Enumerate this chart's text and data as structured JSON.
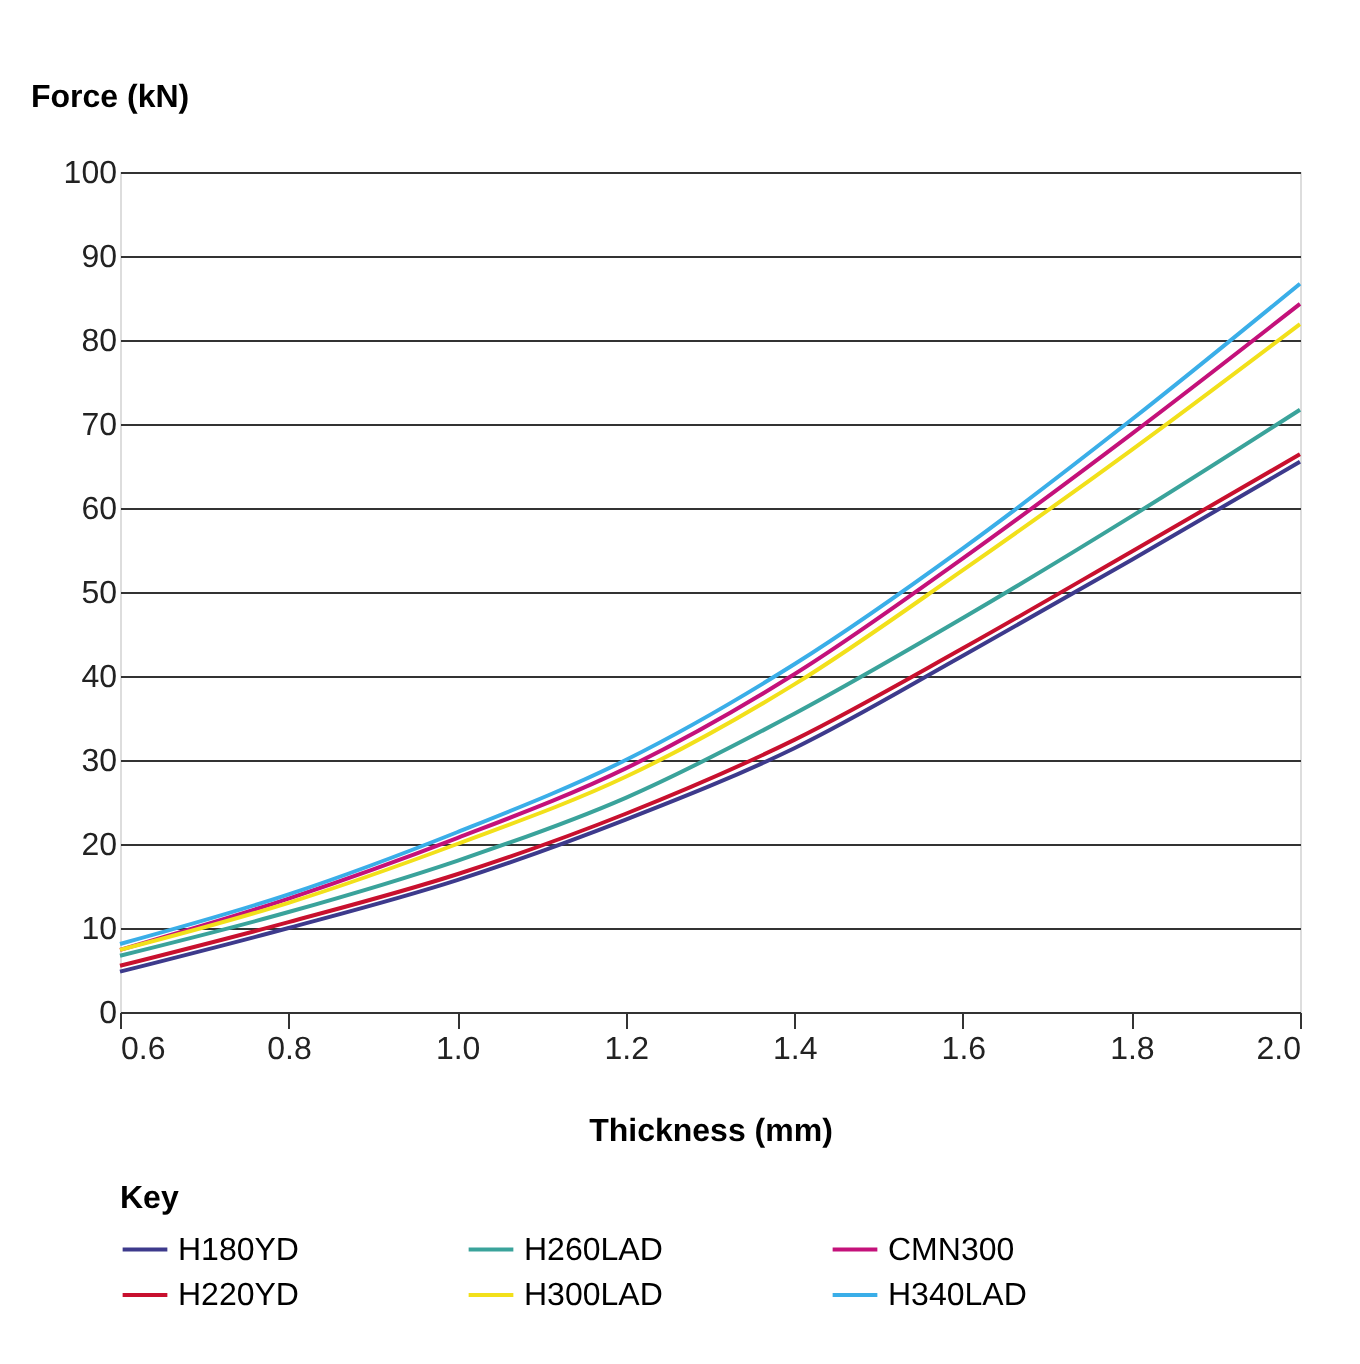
{
  "chart_data": {
    "type": "line",
    "xlabel": "Thickness (mm)",
    "ylabel": "Force (kN)",
    "legend_title": "Key",
    "x": [
      0.6,
      0.8,
      1.0,
      1.2,
      1.4,
      1.6,
      1.8,
      2.0
    ],
    "series": [
      {
        "name": "H180YD",
        "color": "#3d3a8c",
        "values": [
          4.8,
          10,
          15.7,
          22.9,
          31.4,
          42.4,
          53.8,
          65.5
        ]
      },
      {
        "name": "H260LAD",
        "color": "#3aa39b",
        "values": [
          6.7,
          11.9,
          18,
          25.5,
          35.5,
          46.9,
          59,
          71.7
        ]
      },
      {
        "name": "CMN300",
        "color": "#c4117a",
        "values": [
          7.4,
          13.5,
          20.7,
          29,
          40.2,
          54,
          68.8,
          84.3
        ]
      },
      {
        "name": "H220YD",
        "color": "#c8102e",
        "values": [
          5.5,
          10.7,
          16.4,
          23.6,
          32.4,
          43.3,
          54.8,
          66.4
        ]
      },
      {
        "name": "H300LAD",
        "color": "#f2e01a",
        "values": [
          7.4,
          13,
          20,
          28,
          39,
          52.6,
          66.9,
          81.9
        ]
      },
      {
        "name": "H340LAD",
        "color": "#3aaee8",
        "values": [
          8.1,
          14,
          21.4,
          30,
          41.4,
          55.2,
          70.5,
          86.7
        ]
      }
    ],
    "xlim": [
      0.6,
      2.0
    ],
    "xticks": [
      0.6,
      0.8,
      {
        "value": 1,
        "label": "1.0"
      },
      1.2,
      1.4,
      1.6,
      1.8,
      {
        "value": 2,
        "label": "2.0"
      }
    ],
    "ylim": [
      0,
      100
    ],
    "yticks": [
      0,
      10,
      20,
      30,
      40,
      50,
      60,
      70,
      80,
      90,
      100
    ],
    "grid": "y",
    "legend": "bottom",
    "marker": "none",
    "line_style": "solid"
  }
}
